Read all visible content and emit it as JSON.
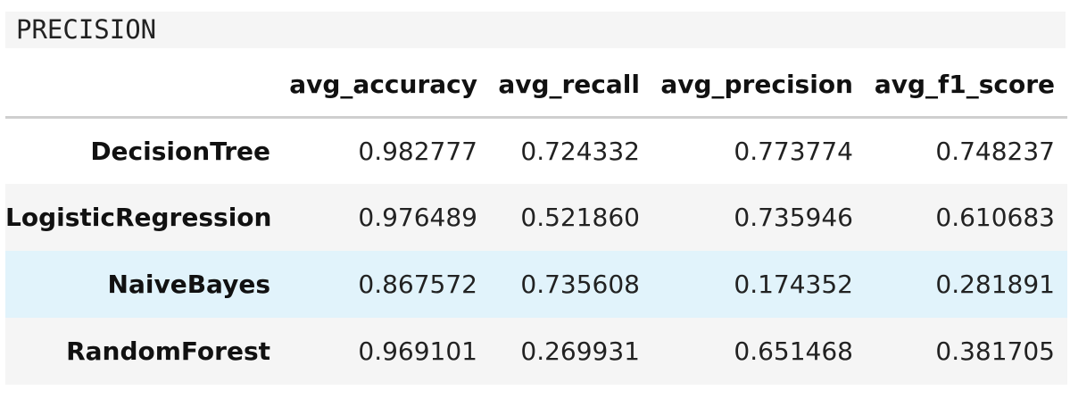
{
  "cell_output": {
    "header_text": "PRECISION"
  },
  "table": {
    "index_header": "",
    "columns": [
      "avg_accuracy",
      "avg_recall",
      "avg_precision",
      "avg_f1_score"
    ],
    "rows": [
      {
        "name": "DecisionTree",
        "values": [
          "0.982777",
          "0.724332",
          "0.773774",
          "0.748237"
        ]
      },
      {
        "name": "LogisticRegression",
        "values": [
          "0.976489",
          "0.521860",
          "0.735946",
          "0.610683"
        ]
      },
      {
        "name": "NaiveBayes",
        "values": [
          "0.867572",
          "0.735608",
          "0.174352",
          "0.281891"
        ]
      },
      {
        "name": "RandomForest",
        "values": [
          "0.969101",
          "0.269931",
          "0.651468",
          "0.381705"
        ]
      }
    ],
    "highlighted_row": "NaiveBayes"
  },
  "colors": {
    "header_band": "#f5f5f5",
    "striped_row": "#f5f5f5",
    "highlight_row": "#e1f3fb",
    "header_rule": "#cfcfcf"
  }
}
